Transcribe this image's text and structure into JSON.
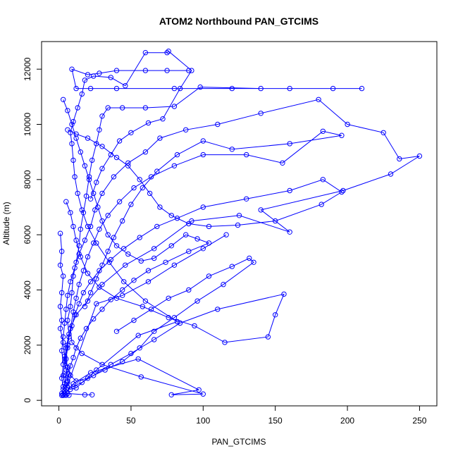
{
  "chart_data": {
    "type": "scatter",
    "title": "ATOM2 Northbound PAN_GTCIMS",
    "xlabel": "PAN_GTCIMS",
    "ylabel": "Altitude (m)",
    "xlim": [
      -12,
      262
    ],
    "ylim": [
      -200,
      13000
    ],
    "xticks": [
      0,
      50,
      100,
      150,
      200,
      250
    ],
    "yticks": [
      0,
      2000,
      4000,
      6000,
      8000,
      10000,
      12000
    ],
    "grid": false,
    "legend": "none",
    "marker": "open-circle",
    "connected": true,
    "series_color": "#0000ff",
    "series": [
      {
        "values": [
          [
            2,
            180
          ],
          [
            3,
            180
          ],
          [
            5,
            185
          ],
          [
            7,
            185
          ],
          [
            4,
            190
          ],
          [
            2,
            250
          ],
          [
            3,
            400
          ],
          [
            4,
            600
          ],
          [
            5,
            900
          ],
          [
            6,
            1200
          ],
          [
            4,
            1500
          ],
          [
            5,
            1900
          ],
          [
            7,
            2400
          ],
          [
            6,
            2900
          ],
          [
            8,
            3400
          ],
          [
            9,
            3900
          ],
          [
            10,
            4500
          ],
          [
            12,
            5000
          ],
          [
            14,
            5600
          ],
          [
            15,
            6200
          ],
          [
            17,
            6800
          ],
          [
            19,
            7400
          ],
          [
            21,
            8100
          ],
          [
            23,
            8700
          ],
          [
            26,
            9300
          ],
          [
            28,
            9800
          ],
          [
            30,
            10300
          ],
          [
            34,
            10600
          ],
          [
            44,
            10600
          ],
          [
            60,
            10600
          ],
          [
            80,
            10650
          ],
          [
            98,
            11350
          ],
          [
            140,
            11300
          ],
          [
            190,
            11300
          ],
          [
            210,
            11300
          ],
          [
            160,
            11300
          ],
          [
            120,
            11300
          ],
          [
            80,
            11300
          ],
          [
            40,
            11300
          ],
          [
            22,
            11300
          ],
          [
            12,
            11300
          ],
          [
            9,
            12000
          ],
          [
            20,
            11800
          ],
          [
            28,
            11850
          ],
          [
            40,
            11950
          ],
          [
            60,
            11950
          ],
          [
            75,
            11950
          ],
          [
            90,
            11950
          ]
        ]
      },
      {
        "values": [
          [
            3,
            200
          ],
          [
            5,
            300
          ],
          [
            10,
            600
          ],
          [
            22,
            1000
          ],
          [
            55,
            1500
          ],
          [
            97,
            380
          ],
          [
            78,
            200
          ],
          [
            100,
            230
          ],
          [
            57,
            850
          ],
          [
            30,
            1300
          ],
          [
            16,
            1700
          ],
          [
            9,
            2100
          ],
          [
            8,
            2600
          ],
          [
            12,
            3100
          ],
          [
            20,
            3600
          ],
          [
            30,
            4200
          ],
          [
            46,
            4900
          ],
          [
            66,
            5500
          ],
          [
            92,
            6500
          ],
          [
            125,
            6700
          ],
          [
            160,
            6100
          ],
          [
            140,
            6900
          ],
          [
            197,
            7600
          ],
          [
            230,
            8200
          ],
          [
            250,
            8850
          ],
          [
            236,
            8750
          ],
          [
            225,
            9700
          ],
          [
            200,
            10000
          ],
          [
            180,
            10900
          ],
          [
            140,
            10400
          ],
          [
            110,
            10000
          ],
          [
            88,
            9800
          ],
          [
            70,
            9500
          ],
          [
            60,
            9000
          ],
          [
            48,
            8600
          ],
          [
            38,
            8100
          ],
          [
            30,
            7500
          ],
          [
            25,
            6900
          ],
          [
            22,
            6300
          ],
          [
            18,
            5800
          ],
          [
            14,
            5300
          ],
          [
            11,
            4800
          ],
          [
            8,
            4300
          ],
          [
            6,
            3800
          ],
          [
            5,
            3300
          ],
          [
            4,
            2800
          ],
          [
            3,
            2300
          ],
          [
            2,
            1800
          ],
          [
            3,
            1300
          ],
          [
            2,
            800
          ],
          [
            3,
            500
          ],
          [
            4,
            350
          ],
          [
            6,
            250
          ],
          [
            18,
            200
          ],
          [
            23,
            200
          ]
        ]
      },
      {
        "values": [
          [
            1,
            6050
          ],
          [
            2,
            5400
          ],
          [
            1,
            4900
          ],
          [
            3,
            4500
          ],
          [
            2,
            3900
          ],
          [
            1,
            3400
          ],
          [
            2,
            2900
          ],
          [
            1,
            2600
          ],
          [
            3,
            2100
          ],
          [
            4,
            1600
          ],
          [
            5,
            1100
          ],
          [
            6,
            700
          ],
          [
            8,
            400
          ],
          [
            12,
            450
          ],
          [
            26,
            1100
          ],
          [
            55,
            2350
          ],
          [
            82,
            2850
          ],
          [
            60,
            3600
          ],
          [
            45,
            4300
          ],
          [
            35,
            5000
          ],
          [
            26,
            5700
          ],
          [
            20,
            6300
          ],
          [
            16,
            6900
          ],
          [
            13,
            7500
          ],
          [
            11,
            8100
          ],
          [
            10,
            8700
          ],
          [
            9,
            9300
          ],
          [
            8,
            9700
          ],
          [
            10,
            10100
          ],
          [
            13,
            10600
          ],
          [
            16,
            11100
          ],
          [
            18,
            11600
          ],
          [
            24,
            11750
          ],
          [
            36,
            11700
          ],
          [
            46,
            11400
          ],
          [
            60,
            12600
          ],
          [
            75,
            12600
          ],
          [
            76,
            12650
          ],
          [
            92,
            11950
          ],
          [
            84,
            11300
          ],
          [
            72,
            10200
          ],
          [
            62,
            10050
          ],
          [
            50,
            9700
          ],
          [
            42,
            9400
          ],
          [
            36,
            8900
          ],
          [
            30,
            8400
          ],
          [
            26,
            7900
          ],
          [
            22,
            7300
          ]
        ]
      },
      {
        "values": [
          [
            5,
            7200
          ],
          [
            8,
            6800
          ],
          [
            10,
            6300
          ],
          [
            12,
            5800
          ],
          [
            15,
            5200
          ],
          [
            20,
            4600
          ],
          [
            28,
            4100
          ],
          [
            40,
            3700
          ],
          [
            58,
            3400
          ],
          [
            76,
            3000
          ],
          [
            94,
            2700
          ],
          [
            115,
            2100
          ],
          [
            145,
            2300
          ],
          [
            150,
            3100
          ],
          [
            156,
            3850
          ],
          [
            110,
            3300
          ],
          [
            84,
            2800
          ],
          [
            66,
            2200
          ],
          [
            50,
            1700
          ],
          [
            36,
            1300
          ],
          [
            24,
            900
          ],
          [
            16,
            650
          ],
          [
            10,
            500
          ],
          [
            6,
            450
          ],
          [
            4,
            600
          ],
          [
            3,
            900
          ],
          [
            4,
            1400
          ],
          [
            6,
            2000
          ],
          [
            8,
            2600
          ],
          [
            10,
            3200
          ],
          [
            12,
            3700
          ],
          [
            14,
            4200
          ],
          [
            17,
            4700
          ],
          [
            20,
            5200
          ],
          [
            24,
            5700
          ],
          [
            28,
            6200
          ],
          [
            34,
            6700
          ],
          [
            42,
            7200
          ],
          [
            52,
            7700
          ],
          [
            64,
            8100
          ],
          [
            80,
            8500
          ],
          [
            100,
            8900
          ],
          [
            130,
            8900
          ],
          [
            155,
            8600
          ],
          [
            183,
            9750
          ],
          [
            196,
            9600
          ],
          [
            160,
            9300
          ],
          [
            120,
            9100
          ],
          [
            100,
            9400
          ],
          [
            82,
            8900
          ],
          [
            68,
            8300
          ],
          [
            58,
            7700
          ],
          [
            50,
            7100
          ],
          [
            44,
            6500
          ],
          [
            38,
            5900
          ],
          [
            34,
            5400
          ],
          [
            30,
            4900
          ],
          [
            26,
            4400
          ],
          [
            22,
            3900
          ],
          [
            18,
            3400
          ]
        ]
      },
      {
        "values": [
          [
            6,
            9800
          ],
          [
            12,
            9650
          ],
          [
            20,
            9500
          ],
          [
            30,
            9200
          ],
          [
            40,
            8800
          ],
          [
            48,
            8500
          ],
          [
            56,
            8000
          ],
          [
            63,
            7500
          ],
          [
            70,
            7000
          ],
          [
            78,
            6700
          ],
          [
            90,
            6400
          ],
          [
            104,
            6300
          ],
          [
            124,
            6350
          ],
          [
            150,
            6500
          ],
          [
            182,
            7100
          ],
          [
            196,
            7550
          ],
          [
            183,
            8000
          ],
          [
            160,
            7600
          ],
          [
            130,
            7300
          ],
          [
            100,
            7000
          ],
          [
            82,
            6600
          ],
          [
            68,
            6300
          ],
          [
            56,
            5900
          ],
          [
            45,
            5500
          ],
          [
            36,
            5100
          ],
          [
            28,
            4700
          ],
          [
            22,
            4300
          ],
          [
            17,
            3900
          ],
          [
            14,
            3500
          ],
          [
            11,
            3100
          ],
          [
            9,
            2700
          ],
          [
            7,
            2300
          ],
          [
            6,
            1900
          ],
          [
            5,
            1500
          ],
          [
            6,
            1200
          ],
          [
            8,
            900
          ],
          [
            12,
            700
          ],
          [
            20,
            800
          ],
          [
            32,
            1100
          ],
          [
            44,
            1400
          ],
          [
            56,
            1900
          ],
          [
            66,
            2500
          ],
          [
            80,
            3000
          ],
          [
            96,
            3600
          ],
          [
            114,
            4200
          ],
          [
            135,
            5000
          ],
          [
            132,
            5150
          ],
          [
            120,
            4850
          ],
          [
            104,
            4500
          ],
          [
            90,
            4000
          ],
          [
            76,
            3700
          ],
          [
            64,
            3300
          ],
          [
            52,
            2900
          ],
          [
            40,
            2500
          ]
        ]
      },
      {
        "values": [
          [
            3,
            10900
          ],
          [
            6,
            10500
          ],
          [
            9,
            10000
          ],
          [
            12,
            9500
          ],
          [
            15,
            9000
          ],
          [
            18,
            8500
          ],
          [
            21,
            8000
          ],
          [
            24,
            7500
          ],
          [
            27,
            7000
          ],
          [
            30,
            6500
          ],
          [
            34,
            6000
          ],
          [
            40,
            5600
          ],
          [
            48,
            5300
          ],
          [
            57,
            5050
          ],
          [
            66,
            5150
          ],
          [
            78,
            5600
          ],
          [
            88,
            6000
          ],
          [
            96,
            5850
          ],
          [
            104,
            5700
          ],
          [
            90,
            5400
          ],
          [
            74,
            5000
          ],
          [
            62,
            4700
          ],
          [
            52,
            4350
          ],
          [
            44,
            4000
          ],
          [
            36,
            3650
          ],
          [
            30,
            3300
          ],
          [
            24,
            2950
          ],
          [
            19,
            2600
          ],
          [
            15,
            2250
          ],
          [
            12,
            1900
          ],
          [
            10,
            1550
          ],
          [
            8,
            1250
          ],
          [
            7,
            950
          ],
          [
            6,
            650
          ],
          [
            5,
            400
          ],
          [
            4,
            250
          ],
          [
            26,
            3500
          ],
          [
            44,
            3800
          ],
          [
            62,
            4300
          ],
          [
            80,
            4900
          ],
          [
            100,
            5500
          ],
          [
            116,
            6000
          ]
        ]
      }
    ]
  }
}
